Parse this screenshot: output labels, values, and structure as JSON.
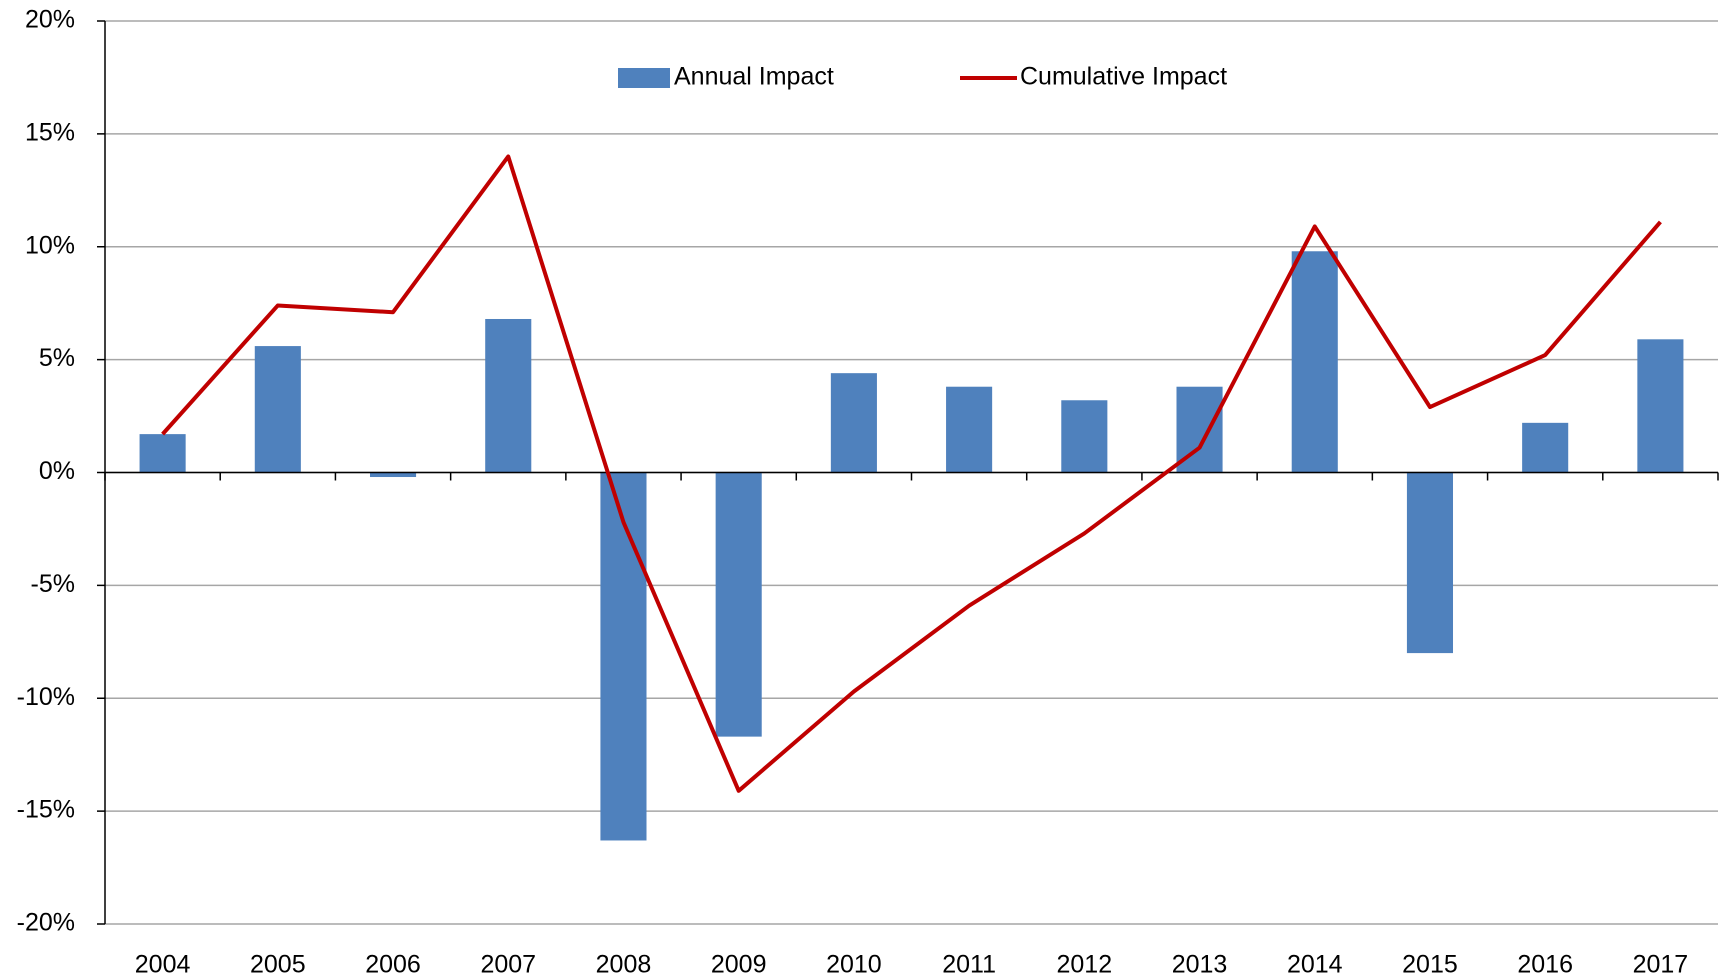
{
  "chart_data": {
    "type": "bar_line",
    "categories": [
      "2004",
      "2005",
      "2006",
      "2007",
      "2008",
      "2009",
      "2010",
      "2011",
      "2012",
      "2013",
      "2014",
      "2015",
      "2016",
      "2017"
    ],
    "series": [
      {
        "name": "Annual Impact",
        "type": "bar",
        "color": "#4f81bd",
        "values": [
          1.7,
          5.6,
          -0.2,
          6.8,
          -16.3,
          -11.7,
          4.4,
          3.8,
          3.2,
          3.8,
          9.8,
          -8.0,
          2.2,
          5.9
        ]
      },
      {
        "name": "Cumulative Impact",
        "type": "line",
        "color": "#c00000",
        "values": [
          1.7,
          7.4,
          7.1,
          14.0,
          -2.2,
          -14.1,
          -9.7,
          -5.9,
          -2.7,
          1.1,
          10.9,
          2.9,
          5.2,
          11.1
        ]
      }
    ],
    "ylim": [
      -20,
      20
    ],
    "yticks": [
      {
        "value": -20,
        "label": "-20%"
      },
      {
        "value": -15,
        "label": "-15%"
      },
      {
        "value": -10,
        "label": "-10%"
      },
      {
        "value": -5,
        "label": "-5%"
      },
      {
        "value": 0,
        "label": "0%"
      },
      {
        "value": 5,
        "label": "5%"
      },
      {
        "value": 10,
        "label": "10%"
      },
      {
        "value": 15,
        "label": "15%"
      },
      {
        "value": 20,
        "label": "20%"
      }
    ],
    "grid": true,
    "legend": "top"
  }
}
